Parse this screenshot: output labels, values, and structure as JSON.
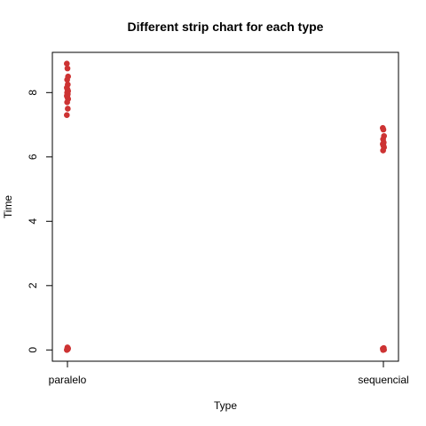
{
  "chart_data": {
    "type": "scatter",
    "title": "Different strip chart for each type",
    "xlabel": "Type",
    "ylabel": "Time",
    "categories": [
      "paralelo",
      "sequencial"
    ],
    "yticks": [
      0,
      2,
      4,
      6,
      8
    ],
    "ylim": [
      -0.35,
      9.25
    ],
    "grid": false,
    "legend": "none",
    "point_color": "#cd3333",
    "series": [
      {
        "category": "paralelo",
        "values": [
          8.9,
          8.75,
          8.5,
          8.4,
          8.25,
          8.15,
          8.1,
          8.05,
          8.0,
          7.95,
          7.9,
          7.85,
          7.8,
          7.7,
          7.5,
          7.3,
          0.08,
          0.05,
          0.03,
          0.02,
          0.0
        ]
      },
      {
        "category": "sequencial",
        "values": [
          6.9,
          6.85,
          6.65,
          6.55,
          6.45,
          6.4,
          6.35,
          6.3,
          6.2,
          0.06,
          0.04,
          0.02,
          0.01,
          0.0
        ]
      }
    ]
  }
}
